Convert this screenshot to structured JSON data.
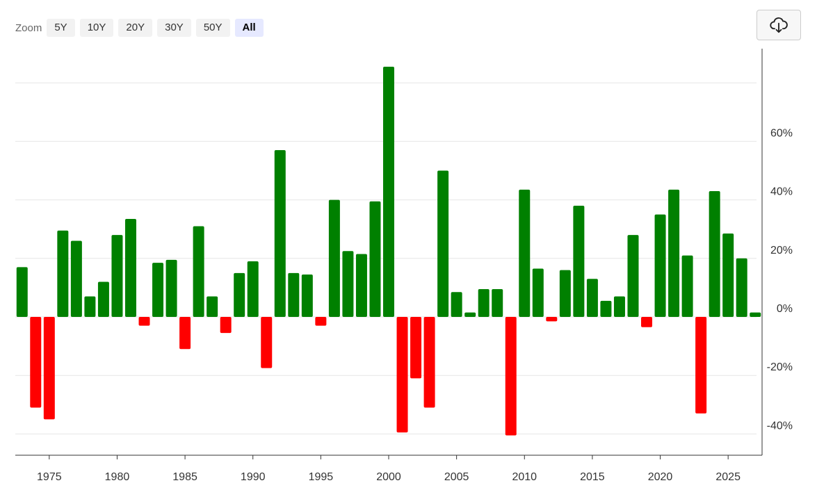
{
  "zoom": {
    "label": "Zoom",
    "buttons": [
      "5Y",
      "10Y",
      "20Y",
      "30Y",
      "50Y",
      "All"
    ],
    "active": "All"
  },
  "toolbar": {
    "download_icon": "cloud-download-icon"
  },
  "colors": {
    "positive": "#008000",
    "negative": "#ff0000",
    "grid": "#e6e6e6",
    "axis": "#333333"
  },
  "chart_data": {
    "type": "bar",
    "x": [
      1973,
      1974,
      1975,
      1976,
      1977,
      1978,
      1979,
      1980,
      1981,
      1982,
      1983,
      1984,
      1985,
      1986,
      1987,
      1988,
      1989,
      1990,
      1991,
      1992,
      1993,
      1994,
      1995,
      1996,
      1997,
      1998,
      1999,
      2000,
      2001,
      2002,
      2003,
      2004,
      2005,
      2006,
      2007,
      2008,
      2009,
      2010,
      2011,
      2012,
      2013,
      2014,
      2015,
      2016,
      2017,
      2018,
      2019,
      2020,
      2021,
      2022,
      2023,
      2024,
      2025,
      2026,
      2027
    ],
    "values": [
      17,
      -31,
      -35,
      29.5,
      26,
      7,
      12,
      28,
      33.5,
      -3,
      18.5,
      19.5,
      -11,
      31,
      7,
      -5.5,
      15,
      19,
      -17.5,
      57,
      15,
      14.5,
      -3,
      40,
      22.5,
      21.5,
      39.5,
      85.5,
      -39.5,
      -21,
      -31,
      50,
      8.5,
      1.5,
      9.5,
      9.5,
      -40.5,
      43.5,
      16.5,
      -1.5,
      16,
      38,
      13,
      5.5,
      7,
      28,
      -3.5,
      35,
      43.5,
      21,
      -33,
      43,
      28.5,
      20,
      1.5
    ],
    "xticks": [
      1975,
      1980,
      1985,
      1990,
      1995,
      2000,
      2005,
      2010,
      2015,
      2020,
      2025
    ],
    "yticks": [
      60,
      40,
      20,
      0,
      -20,
      -40
    ],
    "ytick_labels": [
      "60%",
      "40%",
      "20%",
      "0%",
      "-20%",
      "-40%"
    ],
    "ylim": [
      -47,
      93
    ],
    "xlim": [
      1972.5,
      2027.5
    ],
    "grid": true,
    "y_axis_position": "right",
    "legend": "none"
  }
}
